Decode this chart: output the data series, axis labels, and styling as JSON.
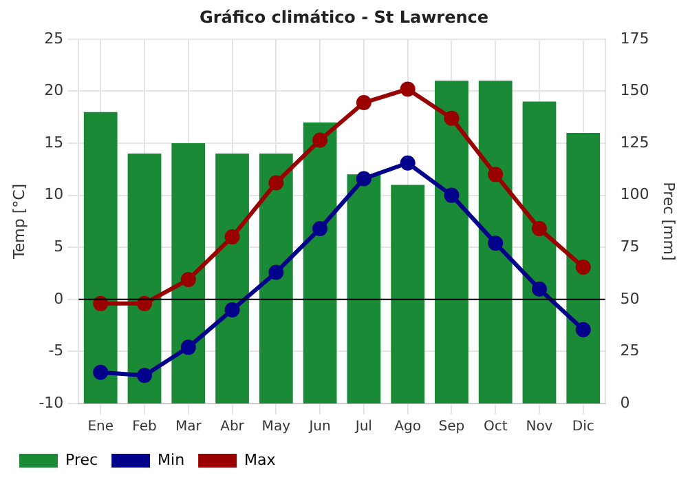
{
  "chart_data": {
    "type": "line",
    "title": "Gráfico climático - St Lawrence",
    "ylabel": "Temp [°C]",
    "y2label": "Prec [mm]",
    "categories": [
      "Ene",
      "Feb",
      "Mar",
      "Abr",
      "May",
      "Jun",
      "Jul",
      "Ago",
      "Sep",
      "Oct",
      "Nov",
      "Dic"
    ],
    "series": [
      {
        "name": "Prec",
        "type": "bar",
        "axis": "y2",
        "color": "#1a8a36",
        "values": [
          140,
          120,
          125,
          120,
          120,
          135,
          110,
          105,
          155,
          155,
          145,
          130
        ]
      },
      {
        "name": "Min",
        "color": "#00008b",
        "values": [
          -7,
          -7.3,
          -4.6,
          -1,
          2.6,
          6.8,
          11.6,
          13.1,
          10,
          5.4,
          1,
          -2.9
        ]
      },
      {
        "name": "Max",
        "color": "#990000",
        "values": [
          -0.4,
          -0.4,
          1.9,
          6,
          11.2,
          15.3,
          18.9,
          20.2,
          17.4,
          12,
          6.8,
          3.1
        ]
      }
    ],
    "ylim": [
      -10,
      25
    ],
    "yticks": [
      -10,
      -5,
      0,
      5,
      10,
      15,
      20,
      25
    ],
    "y2lim": [
      0,
      175
    ],
    "y2ticks": [
      0,
      25,
      50,
      75,
      100,
      125,
      150,
      175
    ],
    "ref_lines": [
      {
        "axis": "y",
        "value": 0,
        "color": "#000000"
      }
    ],
    "grid": true,
    "legend": "bottom left",
    "marker": "circle",
    "line_style": "solid"
  }
}
